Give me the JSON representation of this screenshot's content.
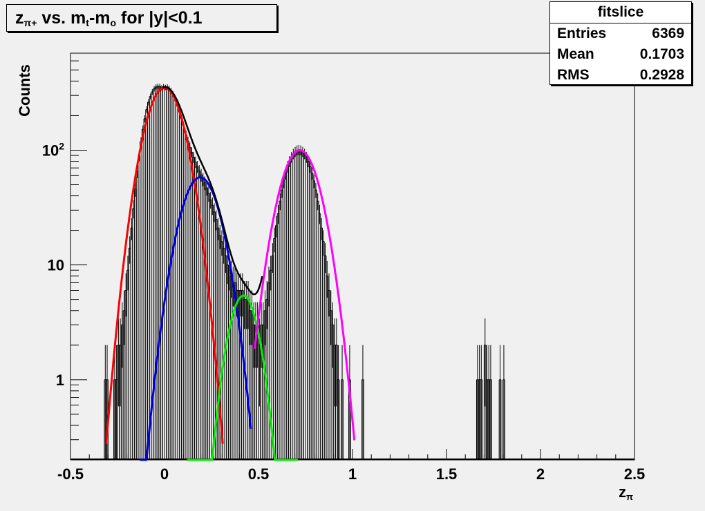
{
  "title": {
    "z_main": "z",
    "z_sub": "π+",
    "mid": " vs. m",
    "mt_sub": "t",
    "dash": "-m",
    "mo_sub": "o",
    "tail": " for |y|<0.1"
  },
  "stats": {
    "name": "fitslice",
    "rows": [
      {
        "label": "Entries",
        "value": "6369"
      },
      {
        "label": "Mean",
        "value": "0.1703"
      },
      {
        "label": "RMS",
        "value": "0.2928"
      }
    ]
  },
  "colors": {
    "background": "#f0f0f0",
    "frame": "#000000",
    "histogram": "#000000",
    "total_fit": "#000000",
    "gaussian_1": "#ff0000",
    "gaussian_2": "#0000dd",
    "gaussian_3": "#00ee00",
    "gaussian_4": "#ff00ff"
  },
  "chart_data": {
    "type": "histogram-with-gaussian-fits",
    "xlabel_main": "z",
    "xlabel_sub": "π",
    "ylabel": "Counts",
    "xlim": [
      -0.5,
      2.5
    ],
    "ylim": [
      0.2,
      700
    ],
    "log_y": true,
    "grid": false,
    "x_ticks": [
      {
        "v": -0.5,
        "label": "-0.5"
      },
      {
        "v": 0,
        "label": "0"
      },
      {
        "v": 0.5,
        "label": "0.5"
      },
      {
        "v": 1,
        "label": "1"
      },
      {
        "v": 1.5,
        "label": "1.5"
      },
      {
        "v": 2,
        "label": "2"
      },
      {
        "v": 2.5,
        "label": "2.5"
      }
    ],
    "y_ticks": [
      {
        "v": 1,
        "label": "1"
      },
      {
        "v": 10,
        "label": "10"
      },
      {
        "v": 100,
        "label": "10",
        "sup": "2"
      }
    ],
    "gaussians": [
      {
        "amp": 350,
        "mean": 0.0,
        "sigma": 0.082,
        "range": [
          -0.31,
          0.31
        ]
      },
      {
        "amp": 58,
        "mean": 0.19,
        "sigma": 0.085,
        "range": [
          -0.13,
          0.46
        ]
      },
      {
        "amp": 5.4,
        "mean": 0.42,
        "sigma": 0.065,
        "range": [
          0.12,
          0.71
        ]
      },
      {
        "amp": 100,
        "mean": 0.72,
        "sigma": 0.085,
        "range": [
          0.48,
          1.01
        ]
      }
    ],
    "histogram": {
      "bin_width": 0.01,
      "bins": [
        {
          "x": -0.32,
          "y": 1
        },
        {
          "x": -0.31,
          "y": 1
        },
        {
          "x": -0.27,
          "y": 1
        },
        {
          "x": -0.26,
          "y": 1
        },
        {
          "x": -0.25,
          "y": 2
        },
        {
          "x": -0.24,
          "y": 2
        },
        {
          "x": -0.23,
          "y": 3
        },
        {
          "x": -0.22,
          "y": 4
        },
        {
          "x": -0.21,
          "y": 6
        },
        {
          "x": -0.2,
          "y": 9
        },
        {
          "x": -0.19,
          "y": 14
        },
        {
          "x": -0.18,
          "y": 21
        },
        {
          "x": -0.17,
          "y": 31
        },
        {
          "x": -0.16,
          "y": 46
        },
        {
          "x": -0.15,
          "y": 65
        },
        {
          "x": -0.14,
          "y": 90
        },
        {
          "x": -0.13,
          "y": 119
        },
        {
          "x": -0.12,
          "y": 152
        },
        {
          "x": -0.11,
          "y": 188
        },
        {
          "x": -0.1,
          "y": 226
        },
        {
          "x": -0.09,
          "y": 262
        },
        {
          "x": -0.08,
          "y": 294
        },
        {
          "x": -0.07,
          "y": 322
        },
        {
          "x": -0.06,
          "y": 343
        },
        {
          "x": -0.05,
          "y": 356
        },
        {
          "x": -0.04,
          "y": 362
        },
        {
          "x": -0.03,
          "y": 360
        },
        {
          "x": -0.02,
          "y": 350
        },
        {
          "x": -0.01,
          "y": 358
        },
        {
          "x": 0.0,
          "y": 352
        },
        {
          "x": 0.01,
          "y": 356
        },
        {
          "x": 0.02,
          "y": 345
        },
        {
          "x": 0.03,
          "y": 331
        },
        {
          "x": 0.04,
          "y": 308
        },
        {
          "x": 0.05,
          "y": 285
        },
        {
          "x": 0.06,
          "y": 258
        },
        {
          "x": 0.07,
          "y": 229
        },
        {
          "x": 0.08,
          "y": 203
        },
        {
          "x": 0.09,
          "y": 178
        },
        {
          "x": 0.1,
          "y": 155
        },
        {
          "x": 0.11,
          "y": 136
        },
        {
          "x": 0.12,
          "y": 120
        },
        {
          "x": 0.13,
          "y": 106
        },
        {
          "x": 0.14,
          "y": 96
        },
        {
          "x": 0.15,
          "y": 87
        },
        {
          "x": 0.16,
          "y": 79
        },
        {
          "x": 0.17,
          "y": 72
        },
        {
          "x": 0.18,
          "y": 66
        },
        {
          "x": 0.19,
          "y": 61
        },
        {
          "x": 0.2,
          "y": 56
        },
        {
          "x": 0.21,
          "y": 52
        },
        {
          "x": 0.22,
          "y": 47
        },
        {
          "x": 0.23,
          "y": 42
        },
        {
          "x": 0.24,
          "y": 37
        },
        {
          "x": 0.25,
          "y": 33
        },
        {
          "x": 0.26,
          "y": 29
        },
        {
          "x": 0.27,
          "y": 25
        },
        {
          "x": 0.28,
          "y": 21
        },
        {
          "x": 0.29,
          "y": 18
        },
        {
          "x": 0.3,
          "y": 16
        },
        {
          "x": 0.31,
          "y": 14
        },
        {
          "x": 0.32,
          "y": 12
        },
        {
          "x": 0.33,
          "y": 10
        },
        {
          "x": 0.34,
          "y": 9
        },
        {
          "x": 0.35,
          "y": 8
        },
        {
          "x": 0.36,
          "y": 7
        },
        {
          "x": 0.37,
          "y": 7
        },
        {
          "x": 0.38,
          "y": 6
        },
        {
          "x": 0.39,
          "y": 6
        },
        {
          "x": 0.4,
          "y": 6
        },
        {
          "x": 0.41,
          "y": 6
        },
        {
          "x": 0.42,
          "y": 5
        },
        {
          "x": 0.43,
          "y": 5
        },
        {
          "x": 0.44,
          "y": 5
        },
        {
          "x": 0.45,
          "y": 4
        },
        {
          "x": 0.46,
          "y": 4
        },
        {
          "x": 0.47,
          "y": 3
        },
        {
          "x": 0.48,
          "y": 3
        },
        {
          "x": 0.49,
          "y": 3
        },
        {
          "x": 0.5,
          "y": 2
        },
        {
          "x": 0.51,
          "y": 3
        },
        {
          "x": 0.52,
          "y": 3
        },
        {
          "x": 0.53,
          "y": 4
        },
        {
          "x": 0.54,
          "y": 5
        },
        {
          "x": 0.55,
          "y": 7
        },
        {
          "x": 0.56,
          "y": 9
        },
        {
          "x": 0.57,
          "y": 12
        },
        {
          "x": 0.58,
          "y": 17
        },
        {
          "x": 0.59,
          "y": 22
        },
        {
          "x": 0.6,
          "y": 28
        },
        {
          "x": 0.61,
          "y": 36
        },
        {
          "x": 0.62,
          "y": 45
        },
        {
          "x": 0.63,
          "y": 54
        },
        {
          "x": 0.64,
          "y": 63
        },
        {
          "x": 0.65,
          "y": 72
        },
        {
          "x": 0.66,
          "y": 80
        },
        {
          "x": 0.67,
          "y": 87
        },
        {
          "x": 0.68,
          "y": 93
        },
        {
          "x": 0.69,
          "y": 97
        },
        {
          "x": 0.7,
          "y": 100
        },
        {
          "x": 0.71,
          "y": 101
        },
        {
          "x": 0.72,
          "y": 100
        },
        {
          "x": 0.73,
          "y": 97
        },
        {
          "x": 0.74,
          "y": 93
        },
        {
          "x": 0.75,
          "y": 87
        },
        {
          "x": 0.76,
          "y": 80
        },
        {
          "x": 0.77,
          "y": 72
        },
        {
          "x": 0.78,
          "y": 63
        },
        {
          "x": 0.79,
          "y": 54
        },
        {
          "x": 0.8,
          "y": 45
        },
        {
          "x": 0.81,
          "y": 36
        },
        {
          "x": 0.82,
          "y": 28
        },
        {
          "x": 0.83,
          "y": 21
        },
        {
          "x": 0.84,
          "y": 16
        },
        {
          "x": 0.85,
          "y": 12
        },
        {
          "x": 0.86,
          "y": 8
        },
        {
          "x": 0.87,
          "y": 6
        },
        {
          "x": 0.88,
          "y": 4
        },
        {
          "x": 0.89,
          "y": 3
        },
        {
          "x": 0.9,
          "y": 2
        },
        {
          "x": 0.91,
          "y": 2
        },
        {
          "x": 0.92,
          "y": 1
        },
        {
          "x": 0.94,
          "y": 1
        },
        {
          "x": 0.98,
          "y": 1
        },
        {
          "x": 1.05,
          "y": 1
        },
        {
          "x": 1.66,
          "y": 1
        },
        {
          "x": 1.67,
          "y": 1
        },
        {
          "x": 1.68,
          "y": 1
        },
        {
          "x": 1.7,
          "y": 2
        },
        {
          "x": 1.71,
          "y": 1
        },
        {
          "x": 1.72,
          "y": 1
        },
        {
          "x": 1.73,
          "y": 1
        },
        {
          "x": 1.78,
          "y": 1
        },
        {
          "x": 1.8,
          "y": 1
        }
      ]
    }
  }
}
